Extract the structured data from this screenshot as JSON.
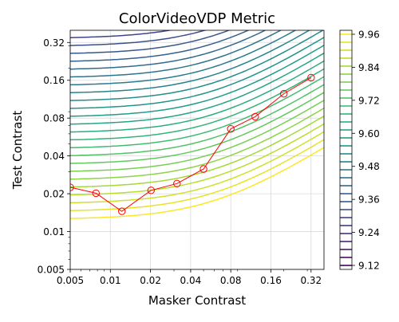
{
  "chart_data": {
    "type": "contour",
    "title": "ColorVideoVDP Metric",
    "xlabel": "Masker Contrast",
    "ylabel": "Test Contrast",
    "x_scale": "log",
    "y_scale": "log",
    "xlim": [
      0.005,
      0.4
    ],
    "ylim": [
      0.005,
      0.4
    ],
    "grid": true,
    "x_ticks": [
      {
        "value": 0.005,
        "label": "0.005"
      },
      {
        "value": 0.01,
        "label": "0.01"
      },
      {
        "value": 0.02,
        "label": "0.02"
      },
      {
        "value": 0.04,
        "label": "0.04"
      },
      {
        "value": 0.08,
        "label": "0.08"
      },
      {
        "value": 0.16,
        "label": "0.16"
      },
      {
        "value": 0.32,
        "label": "0.32"
      }
    ],
    "y_ticks": [
      {
        "value": 0.005,
        "label": "0.005"
      },
      {
        "value": 0.01,
        "label": "0.01"
      },
      {
        "value": 0.02,
        "label": "0.02"
      },
      {
        "value": 0.04,
        "label": "0.04"
      },
      {
        "value": 0.08,
        "label": "0.08"
      },
      {
        "value": 0.16,
        "label": "0.16"
      },
      {
        "value": 0.32,
        "label": "0.32"
      }
    ],
    "colorbar": {
      "min": 9.12,
      "max": 9.96,
      "colormap": "viridis",
      "ticks": [
        "9.12",
        "9.24",
        "9.36",
        "9.48",
        "9.60",
        "9.72",
        "9.84",
        "9.96"
      ],
      "level_count": 30
    },
    "threshold_series": {
      "color": "#ff0000",
      "marker": "open-circle",
      "x": [
        0.005,
        0.0078,
        0.0122,
        0.0202,
        0.0316,
        0.05,
        0.08,
        0.122,
        0.2,
        0.32
      ],
      "y": [
        0.0225,
        0.0202,
        0.0145,
        0.0213,
        0.0241,
        0.0315,
        0.0657,
        0.0821,
        0.125,
        0.168
      ]
    }
  }
}
